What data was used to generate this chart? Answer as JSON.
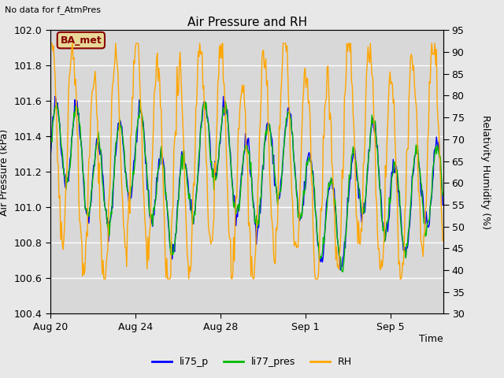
{
  "title": "Air Pressure and RH",
  "top_left_text": "No data for f_AtmPres",
  "ylabel_left": "Air Pressure (kPa)",
  "ylabel_right": "Relativity Humidity (%)",
  "xlabel": "Time",
  "ylim_left": [
    100.4,
    102.0
  ],
  "ylim_right": [
    30,
    95
  ],
  "yticks_left": [
    100.4,
    100.6,
    100.8,
    101.0,
    101.2,
    101.4,
    101.6,
    101.8,
    102.0
  ],
  "yticks_right": [
    30,
    35,
    40,
    45,
    50,
    55,
    60,
    65,
    70,
    75,
    80,
    85,
    90,
    95
  ],
  "xtick_labels": [
    "Aug 20",
    "Aug 24",
    "Aug 28",
    "Sep 1",
    "Sep 5"
  ],
  "legend_entries": [
    "li75_p",
    "li77_pres",
    "RH"
  ],
  "legend_colors": [
    "#0000ff",
    "#00bb00",
    "#ffa500"
  ],
  "line_colors": [
    "#0000ff",
    "#00bb00",
    "#ffa500"
  ],
  "annotation_text": "BA_met",
  "annotation_color": "#880000",
  "annotation_bg": "#e8d898",
  "fig_bg_color": "#e8e8e8",
  "plot_bg_color": "#d8d8d8",
  "grid_color": "#ffffff",
  "seed": 42
}
